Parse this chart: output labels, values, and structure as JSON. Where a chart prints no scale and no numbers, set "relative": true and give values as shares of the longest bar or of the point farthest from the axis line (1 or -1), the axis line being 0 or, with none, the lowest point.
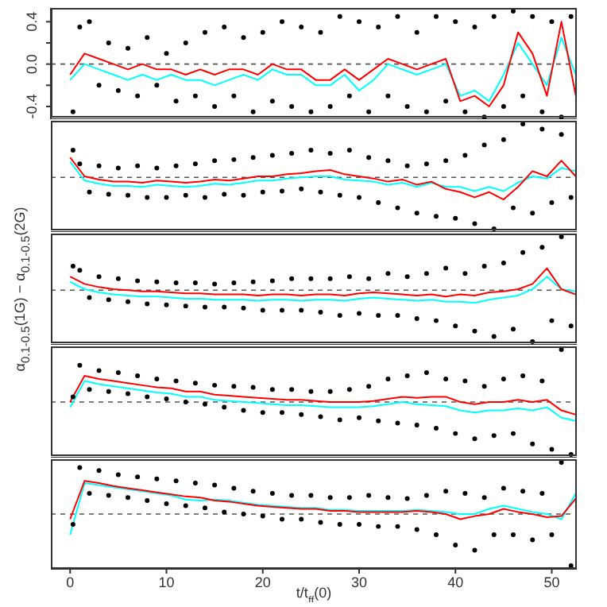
{
  "chart_data": [
    {
      "type": "line",
      "xlim": [
        -2,
        52.6
      ],
      "xticks": [
        0,
        10,
        20,
        30,
        40,
        50
      ],
      "ylim": [
        -0.52,
        0.53
      ],
      "yticks": [
        -0.4,
        {
          "value": -0.2,
          "label": null
        },
        {
          "value": 0,
          "label": "0.0"
        },
        {
          "value": 0.2,
          "label": null
        },
        0.4
      ],
      "tick_labels": "y",
      "x": [
        0,
        1.5,
        3,
        4.5,
        6,
        7.5,
        9,
        10.5,
        12,
        13.5,
        15,
        16.5,
        18,
        19.5,
        21,
        22.5,
        24,
        25.5,
        27,
        28.5,
        30,
        31.5,
        33,
        34.5,
        36,
        37.5,
        39,
        40.5,
        42,
        43.5,
        45,
        46.5,
        48,
        49.5,
        51,
        52.5
      ],
      "ref_lines": [
        {
          "axis": "y",
          "value": 0,
          "color": "#555555",
          "line_style": "dashed"
        }
      ],
      "series": [
        {
          "type": "scatter",
          "color": "#000000",
          "marker": "circle",
          "x": [
            0.3,
            1,
            2,
            3,
            4,
            5,
            6,
            7,
            8,
            9,
            10,
            11,
            12,
            13,
            14,
            15,
            16,
            17,
            18,
            19,
            20,
            21,
            22,
            23,
            24,
            25,
            26,
            27,
            28,
            29,
            30,
            31,
            32,
            33,
            34,
            35,
            36,
            37,
            38,
            39,
            40,
            41,
            42,
            43,
            44,
            45,
            46,
            47,
            48,
            49,
            50,
            51,
            52
          ],
          "values": [
            -0.45,
            0.35,
            0.4,
            -0.2,
            0.2,
            -0.25,
            0.15,
            -0.3,
            0.25,
            -0.2,
            0.1,
            -0.35,
            0.2,
            -0.3,
            0.3,
            -0.4,
            0.35,
            -0.3,
            0.25,
            -0.45,
            0.3,
            -0.35,
            0.4,
            -0.4,
            0.35,
            -0.45,
            0.3,
            -0.4,
            0.45,
            -0.3,
            0.4,
            -0.45,
            0.35,
            -0.3,
            0.45,
            -0.4,
            0.3,
            -0.45,
            0.45,
            -0.35,
            0.4,
            -0.45,
            0.35,
            -0.5,
            0.45,
            -0.4,
            0.5,
            -0.3,
            0.45,
            -0.45,
            0.4,
            -0.5,
            0.45
          ]
        },
        {
          "color": "#00ffff",
          "marker": "none",
          "values": [
            -0.15,
            0.0,
            -0.05,
            -0.1,
            -0.15,
            -0.1,
            -0.15,
            -0.1,
            -0.15,
            -0.15,
            -0.2,
            -0.15,
            -0.1,
            -0.15,
            -0.05,
            -0.1,
            -0.1,
            -0.2,
            -0.2,
            -0.1,
            -0.25,
            -0.15,
            0.0,
            -0.05,
            -0.1,
            -0.05,
            0.0,
            -0.3,
            -0.25,
            -0.35,
            -0.1,
            0.2,
            0.0,
            -0.2,
            0.25,
            -0.1
          ]
        },
        {
          "color": "#ff0000",
          "marker": "none",
          "values": [
            -0.1,
            0.1,
            0.05,
            0.0,
            -0.05,
            0.0,
            -0.05,
            -0.05,
            -0.1,
            -0.05,
            -0.1,
            -0.05,
            -0.05,
            -0.1,
            0.0,
            -0.05,
            -0.05,
            -0.15,
            -0.15,
            -0.05,
            -0.15,
            -0.05,
            0.05,
            0.0,
            -0.05,
            0.0,
            0.05,
            -0.35,
            -0.3,
            -0.4,
            -0.2,
            0.3,
            0.1,
            -0.3,
            0.4,
            -0.3
          ]
        }
      ]
    },
    {
      "type": "line",
      "relative": true,
      "xlim": [
        -2,
        52.6
      ],
      "xticks": [
        0,
        10,
        20,
        30,
        40,
        50
      ],
      "tick_labels": false,
      "x": [
        0,
        1.5,
        3,
        4.5,
        6,
        7.5,
        9,
        10.5,
        12,
        13.5,
        15,
        16.5,
        18,
        19.5,
        21,
        22.5,
        24,
        25.5,
        27,
        28.5,
        30,
        31.5,
        33,
        34.5,
        36,
        37.5,
        39,
        40.5,
        42,
        43.5,
        45,
        46.5,
        48,
        49.5,
        51,
        52.5
      ],
      "ref_lines": [
        {
          "axis": "y",
          "value": 0.49,
          "color": "#555555",
          "line_style": "dashed"
        }
      ],
      "series": [
        {
          "type": "scatter",
          "color": "#000000",
          "marker": "circle",
          "x": [
            0.3,
            1,
            2,
            3,
            4,
            5,
            6,
            7,
            8,
            9,
            10,
            11,
            12,
            13,
            14,
            15,
            16,
            17,
            18,
            19,
            20,
            21,
            22,
            23,
            24,
            25,
            26,
            27,
            28,
            29,
            30,
            31,
            32,
            33,
            34,
            35,
            36,
            37,
            38,
            39,
            40,
            41,
            42,
            43,
            44,
            45,
            46,
            47,
            48,
            49,
            50,
            51,
            52
          ],
          "values": [
            0.75,
            0.62,
            0.35,
            0.6,
            0.33,
            0.58,
            0.32,
            0.6,
            0.3,
            0.58,
            0.3,
            0.6,
            0.32,
            0.62,
            0.3,
            0.65,
            0.33,
            0.66,
            0.32,
            0.68,
            0.35,
            0.7,
            0.36,
            0.72,
            0.38,
            0.75,
            0.35,
            0.72,
            0.32,
            0.75,
            0.3,
            0.68,
            0.25,
            0.65,
            0.2,
            0.6,
            0.15,
            0.62,
            0.12,
            0.65,
            0.1,
            0.7,
            0.05,
            0.8,
            0,
            0.85,
            0.2,
            1,
            0.15,
            0.95,
            0.25,
            0.9,
            0.3
          ]
        },
        {
          "color": "#00ffff",
          "marker": "none",
          "values": [
            0.64,
            0.46,
            0.43,
            0.41,
            0.41,
            0.4,
            0.42,
            0.41,
            0.4,
            0.41,
            0.43,
            0.42,
            0.44,
            0.46,
            0.46,
            0.48,
            0.49,
            0.5,
            0.5,
            0.47,
            0.46,
            0.45,
            0.42,
            0.44,
            0.4,
            0.44,
            0.4,
            0.4,
            0.36,
            0.4,
            0.36,
            0.44,
            0.5,
            0.48,
            0.58,
            0.55
          ]
        },
        {
          "color": "#ff0000",
          "marker": "none",
          "values": [
            0.68,
            0.5,
            0.47,
            0.45,
            0.45,
            0.44,
            0.46,
            0.45,
            0.44,
            0.45,
            0.47,
            0.46,
            0.48,
            0.5,
            0.5,
            0.52,
            0.53,
            0.55,
            0.56,
            0.52,
            0.5,
            0.48,
            0.45,
            0.47,
            0.42,
            0.45,
            0.38,
            0.35,
            0.3,
            0.35,
            0.28,
            0.4,
            0.55,
            0.5,
            0.65,
            0.5
          ]
        }
      ]
    },
    {
      "type": "line",
      "relative": true,
      "ylabel": "α$_{0.1-0.5}$(1G) − α$_{0.1-0.5}$(2G)",
      "xlim": [
        -2,
        52.6
      ],
      "xticks": [
        0,
        10,
        20,
        30,
        40,
        50
      ],
      "tick_labels": false,
      "x": [
        0,
        1.5,
        3,
        4.5,
        6,
        7.5,
        9,
        10.5,
        12,
        13.5,
        15,
        16.5,
        18,
        19.5,
        21,
        22.5,
        24,
        25.5,
        27,
        28.5,
        30,
        31.5,
        33,
        34.5,
        36,
        37.5,
        39,
        40.5,
        42,
        43.5,
        45,
        46.5,
        48,
        49.5,
        51,
        52.5
      ],
      "ref_lines": [
        {
          "axis": "y",
          "value": 0.49,
          "color": "#555555",
          "line_style": "dashed"
        }
      ],
      "series": [
        {
          "type": "scatter",
          "color": "#000000",
          "marker": "circle",
          "x": [
            0.3,
            1,
            2,
            3,
            4,
            5,
            6,
            7,
            8,
            9,
            10,
            11,
            12,
            13,
            14,
            15,
            16,
            17,
            18,
            19,
            20,
            21,
            22,
            23,
            24,
            25,
            26,
            27,
            28,
            29,
            30,
            31,
            32,
            33,
            34,
            35,
            36,
            37,
            38,
            39,
            40,
            41,
            42,
            43,
            44,
            45,
            46,
            47,
            48,
            49,
            50,
            51,
            52
          ],
          "values": [
            0.72,
            0.68,
            0.42,
            0.62,
            0.4,
            0.6,
            0.38,
            0.58,
            0.36,
            0.57,
            0.35,
            0.56,
            0.34,
            0.56,
            0.33,
            0.55,
            0.33,
            0.56,
            0.32,
            0.57,
            0.3,
            0.58,
            0.3,
            0.6,
            0.3,
            0.6,
            0.28,
            0.6,
            0.25,
            0.62,
            0.27,
            0.6,
            0.25,
            0.65,
            0.25,
            0.62,
            0.22,
            0.65,
            0.2,
            0.7,
            0.15,
            0.65,
            0.1,
            0.72,
            0.05,
            0.75,
            0.12,
            0.85,
            0,
            0.9,
            0.2,
            1,
            0.15
          ]
        },
        {
          "color": "#00ffff",
          "marker": "none",
          "values": [
            0.57,
            0.5,
            0.47,
            0.45,
            0.44,
            0.43,
            0.43,
            0.42,
            0.41,
            0.41,
            0.4,
            0.4,
            0.4,
            0.39,
            0.4,
            0.4,
            0.39,
            0.4,
            0.4,
            0.39,
            0.41,
            0.42,
            0.41,
            0.4,
            0.39,
            0.4,
            0.38,
            0.38,
            0.37,
            0.4,
            0.42,
            0.44,
            0.5,
            0.62,
            0.5,
            0.48
          ]
        },
        {
          "color": "#ff0000",
          "marker": "none",
          "values": [
            0.62,
            0.55,
            0.52,
            0.5,
            0.49,
            0.48,
            0.48,
            0.47,
            0.46,
            0.46,
            0.45,
            0.45,
            0.45,
            0.44,
            0.45,
            0.45,
            0.44,
            0.45,
            0.45,
            0.44,
            0.46,
            0.47,
            0.46,
            0.45,
            0.44,
            0.45,
            0.43,
            0.45,
            0.44,
            0.47,
            0.48,
            0.5,
            0.55,
            0.7,
            0.5,
            0.45
          ]
        }
      ]
    },
    {
      "type": "line",
      "relative": true,
      "xlim": [
        -2,
        52.6
      ],
      "xticks": [
        0,
        10,
        20,
        30,
        40,
        50
      ],
      "tick_labels": false,
      "x": [
        0,
        1.5,
        3,
        4.5,
        6,
        7.5,
        9,
        10.5,
        12,
        13.5,
        15,
        16.5,
        18,
        19.5,
        21,
        22.5,
        24,
        25.5,
        27,
        28.5,
        30,
        31.5,
        33,
        34.5,
        36,
        37.5,
        39,
        40.5,
        42,
        43.5,
        45,
        46.5,
        48,
        49.5,
        51,
        52.5
      ],
      "ref_lines": [
        {
          "axis": "y",
          "value": 0.5,
          "color": "#555555",
          "line_style": "dashed"
        }
      ],
      "series": [
        {
          "type": "scatter",
          "color": "#000000",
          "marker": "circle",
          "x": [
            0.3,
            1,
            2,
            3,
            4,
            5,
            6,
            7,
            8,
            9,
            10,
            11,
            12,
            13,
            14,
            15,
            16,
            17,
            18,
            19,
            20,
            21,
            22,
            23,
            24,
            25,
            26,
            27,
            28,
            29,
            30,
            31,
            32,
            33,
            34,
            35,
            36,
            37,
            38,
            39,
            40,
            41,
            42,
            43,
            44,
            45,
            46,
            47,
            48,
            49,
            50,
            51,
            52
          ],
          "values": [
            0.55,
            0.85,
            0.62,
            0.8,
            0.6,
            0.78,
            0.58,
            0.75,
            0.55,
            0.72,
            0.53,
            0.7,
            0.5,
            0.68,
            0.48,
            0.66,
            0.45,
            0.65,
            0.42,
            0.64,
            0.4,
            0.62,
            0.4,
            0.62,
            0.38,
            0.6,
            0.36,
            0.6,
            0.33,
            0.62,
            0.35,
            0.65,
            0.32,
            0.72,
            0.3,
            0.75,
            0.28,
            0.78,
            0.25,
            0.72,
            0.2,
            0.7,
            0.15,
            0.65,
            0.18,
            0.72,
            0.2,
            0.75,
            0.1,
            0.7,
            0.05,
            1,
            0
          ]
        },
        {
          "color": "#00ffff",
          "marker": "none",
          "values": [
            0.45,
            0.7,
            0.67,
            0.65,
            0.63,
            0.61,
            0.59,
            0.58,
            0.55,
            0.55,
            0.52,
            0.51,
            0.5,
            0.49,
            0.48,
            0.47,
            0.47,
            0.46,
            0.45,
            0.45,
            0.45,
            0.46,
            0.48,
            0.5,
            0.48,
            0.47,
            0.46,
            0.42,
            0.4,
            0.42,
            0.42,
            0.44,
            0.42,
            0.45,
            0.35,
            0.32
          ]
        },
        {
          "color": "#ff0000",
          "marker": "none",
          "values": [
            0.5,
            0.75,
            0.72,
            0.7,
            0.68,
            0.66,
            0.64,
            0.63,
            0.6,
            0.6,
            0.57,
            0.56,
            0.55,
            0.54,
            0.53,
            0.52,
            0.52,
            0.51,
            0.5,
            0.5,
            0.5,
            0.51,
            0.53,
            0.55,
            0.54,
            0.55,
            0.55,
            0.5,
            0.48,
            0.5,
            0.5,
            0.52,
            0.5,
            0.52,
            0.42,
            0.38
          ]
        }
      ]
    },
    {
      "type": "line",
      "relative": true,
      "xlabel": "t/t$_{ff}$(0)",
      "xlim": [
        -2,
        52.6
      ],
      "xticks": [
        0,
        10,
        20,
        30,
        40,
        50
      ],
      "tick_labels": "x",
      "x": [
        0,
        1.5,
        3,
        4.5,
        6,
        7.5,
        9,
        10.5,
        12,
        13.5,
        15,
        16.5,
        18,
        19.5,
        21,
        22.5,
        24,
        25.5,
        27,
        28.5,
        30,
        31.5,
        33,
        34.5,
        36,
        37.5,
        39,
        40.5,
        42,
        43.5,
        45,
        46.5,
        48,
        49.5,
        51,
        52.5
      ],
      "ref_lines": [
        {
          "axis": "y",
          "value": 0.5,
          "color": "#555555",
          "line_style": "dashed"
        }
      ],
      "series": [
        {
          "type": "scatter",
          "color": "#000000",
          "marker": "circle",
          "x": [
            0.3,
            1,
            2,
            3,
            4,
            5,
            6,
            7,
            8,
            9,
            10,
            11,
            12,
            13,
            14,
            15,
            16,
            17,
            18,
            19,
            20,
            21,
            22,
            23,
            24,
            25,
            26,
            27,
            28,
            29,
            30,
            31,
            32,
            33,
            34,
            35,
            36,
            37,
            38,
            39,
            40,
            41,
            42,
            43,
            44,
            45,
            46,
            47,
            48,
            49,
            50,
            51,
            52
          ],
          "values": [
            0.4,
            0.95,
            0.7,
            0.92,
            0.68,
            0.88,
            0.66,
            0.86,
            0.63,
            0.84,
            0.6,
            0.82,
            0.58,
            0.8,
            0.56,
            0.78,
            0.52,
            0.75,
            0.5,
            0.72,
            0.48,
            0.7,
            0.45,
            0.68,
            0.45,
            0.68,
            0.42,
            0.66,
            0.4,
            0.66,
            0.4,
            0.68,
            0.38,
            0.66,
            0.38,
            0.65,
            0.35,
            0.68,
            0.3,
            0.72,
            0.2,
            0.7,
            0.15,
            0.66,
            0.3,
            0.75,
            0.3,
            0.72,
            0.25,
            0.7,
            0.3,
            1,
            0
          ]
        },
        {
          "color": "#00ffff",
          "marker": "none",
          "values": [
            0.3,
            0.8,
            0.78,
            0.76,
            0.74,
            0.72,
            0.7,
            0.68,
            0.64,
            0.63,
            0.64,
            0.63,
            0.61,
            0.59,
            0.58,
            0.57,
            0.56,
            0.56,
            0.54,
            0.54,
            0.53,
            0.53,
            0.53,
            0.53,
            0.54,
            0.53,
            0.52,
            0.5,
            0.5,
            0.55,
            0.58,
            0.55,
            0.52,
            0.5,
            0.45,
            0.7
          ]
        },
        {
          "color": "#ff0000",
          "marker": "none",
          "values": [
            0.45,
            0.82,
            0.8,
            0.77,
            0.75,
            0.73,
            0.71,
            0.69,
            0.67,
            0.66,
            0.63,
            0.62,
            0.6,
            0.58,
            0.57,
            0.56,
            0.55,
            0.55,
            0.53,
            0.53,
            0.52,
            0.52,
            0.52,
            0.52,
            0.53,
            0.52,
            0.5,
            0.45,
            0.48,
            0.5,
            0.55,
            0.52,
            0.5,
            0.47,
            0.48,
            0.65
          ]
        }
      ]
    }
  ]
}
